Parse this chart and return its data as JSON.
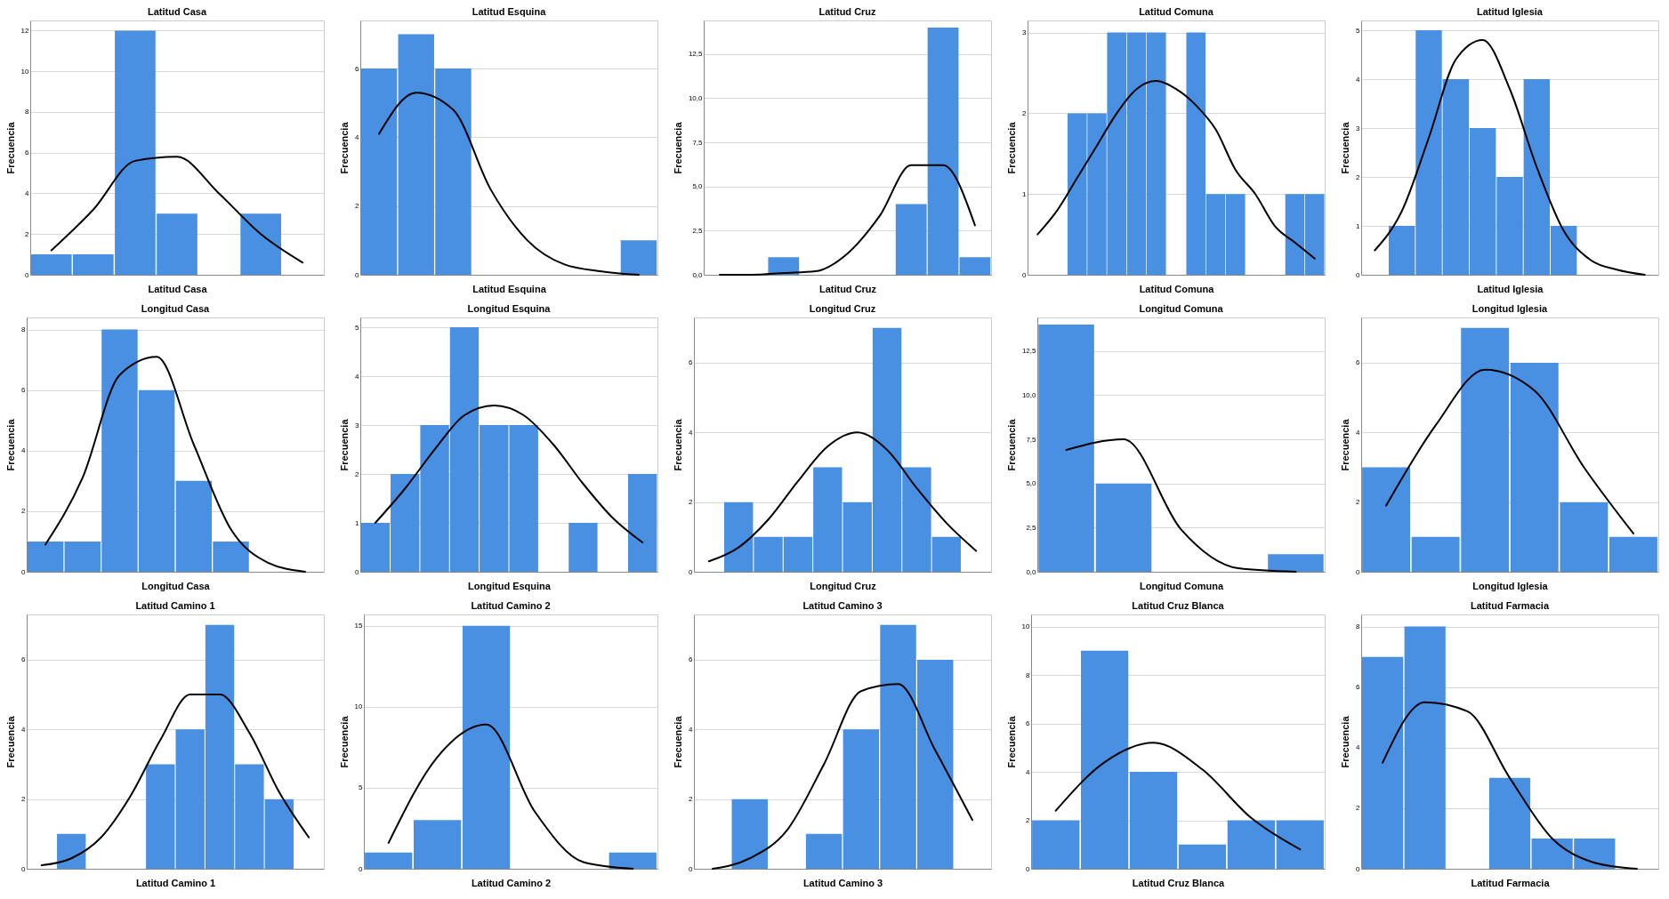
{
  "chart_data": [
    {
      "type": "bar",
      "title": "Latitud Casa",
      "xlabel": "Latitud Casa",
      "ylabel": "Frecuencia",
      "categories": [
        null,
        null,
        null,
        null,
        null,
        null,
        null
      ],
      "series": [
        {
          "type": "bar",
          "color": "#4a90e2",
          "values": [
            1,
            1,
            12,
            3,
            0,
            3,
            null
          ]
        },
        {
          "type": "line",
          "color": "#000000",
          "values": [
            1.2,
            3.2,
            5.6,
            5.8,
            4.0,
            2.0,
            0.6
          ]
        }
      ],
      "ylim": [
        0,
        12.5
      ],
      "yticks": [
        0,
        2,
        4,
        6,
        8,
        10,
        12
      ],
      "grid": "y",
      "tick_labels": "y"
    },
    {
      "type": "bar",
      "title": "Latitud Esquina",
      "xlabel": "Latitud Esquina",
      "ylabel": "Frecuencia",
      "categories": [
        null,
        null,
        null,
        null,
        null,
        null,
        null,
        null
      ],
      "series": [
        {
          "type": "bar",
          "color": "#4a90e2",
          "values": [
            6,
            7,
            6,
            0,
            0,
            0,
            0,
            1
          ]
        },
        {
          "type": "line",
          "color": "#000000",
          "values": [
            4.1,
            5.3,
            4.8,
            2.5,
            1.0,
            0.3,
            0.1,
            0
          ]
        }
      ],
      "ylim": [
        0,
        7.4
      ],
      "yticks": [
        0,
        2,
        4,
        6
      ],
      "grid": "y",
      "tick_labels": "y"
    },
    {
      "type": "bar",
      "title": "Latitud Cruz",
      "xlabel": "Latitud Cruz",
      "ylabel": "Frecuencia",
      "categories": [
        null,
        null,
        null,
        null,
        null,
        null,
        null,
        null,
        null
      ],
      "series": [
        {
          "type": "bar",
          "color": "#4a90e2",
          "values": [
            0,
            0,
            1,
            0,
            0,
            0,
            4,
            14,
            1
          ]
        },
        {
          "type": "line",
          "color": "#000000",
          "values": [
            0,
            0,
            0.1,
            0.2,
            1.2,
            3.3,
            6.2,
            6.2,
            2.8
          ]
        }
      ],
      "ylim": [
        0,
        14.4
      ],
      "yticks": [
        {
          "value": 0,
          "label": "0,0"
        },
        {
          "value": 2.5,
          "label": "2,5"
        },
        {
          "value": 5,
          "label": "5,0"
        },
        {
          "value": 7.5,
          "label": "7,5"
        },
        {
          "value": 10,
          "label": "10,0"
        },
        {
          "value": 12.5,
          "label": "12,5"
        }
      ],
      "grid": "y",
      "tick_labels": "y"
    },
    {
      "type": "bar",
      "title": "Latitud Comuna",
      "xlabel": "Latitud Comuna",
      "ylabel": "Frecuencia",
      "categories": [
        null,
        null,
        null,
        null,
        null,
        null,
        null,
        null,
        null,
        null,
        null,
        null,
        null,
        null,
        null
      ],
      "series": [
        {
          "type": "bar",
          "color": "#4a90e2",
          "values": [
            null,
            null,
            2,
            2,
            3,
            3,
            3,
            0,
            3,
            1,
            1,
            0,
            0,
            1,
            1
          ]
        },
        {
          "type": "line",
          "color": "#000000",
          "values": [
            0.5,
            0.8,
            1.2,
            1.6,
            2.0,
            2.3,
            2.4,
            2.3,
            2.1,
            1.8,
            1.3,
            1.0,
            0.6,
            0.4,
            0.2
          ]
        }
      ],
      "ylim": [
        0,
        3.15
      ],
      "yticks": [
        0,
        1,
        2,
        3
      ],
      "grid": "y",
      "tick_labels": "y"
    },
    {
      "type": "bar",
      "title": "Latitud Iglesia",
      "xlabel": "Latitud Iglesia",
      "ylabel": "Frecuencia",
      "categories": [
        null,
        null,
        null,
        null,
        null,
        null,
        null,
        null,
        null,
        null,
        null
      ],
      "series": [
        {
          "type": "bar",
          "color": "#4a90e2",
          "values": [
            null,
            1,
            5,
            4,
            3,
            2,
            4,
            1,
            null,
            null,
            null
          ]
        },
        {
          "type": "line",
          "color": "#000000",
          "values": [
            0.5,
            1.3,
            2.8,
            4.4,
            4.8,
            3.8,
            2.2,
            0.9,
            0.3,
            0.1,
            0
          ]
        }
      ],
      "ylim": [
        0,
        5.2
      ],
      "yticks": [
        0,
        1,
        2,
        3,
        4,
        5
      ],
      "grid": "y",
      "tick_labels": "y"
    },
    {
      "type": "bar",
      "title": "Longitud Casa",
      "xlabel": "Longitud Casa",
      "ylabel": "Frecuencia",
      "categories": [
        null,
        null,
        null,
        null,
        null,
        null,
        null,
        null
      ],
      "series": [
        {
          "type": "bar",
          "color": "#4a90e2",
          "values": [
            1,
            1,
            8,
            6,
            3,
            1,
            null,
            null
          ]
        },
        {
          "type": "line",
          "color": "#000000",
          "values": [
            0.9,
            3.1,
            6.5,
            7.1,
            4.2,
            1.4,
            0.3,
            0
          ]
        }
      ],
      "ylim": [
        0,
        8.4
      ],
      "yticks": [
        0,
        2,
        4,
        6,
        8
      ],
      "grid": "y",
      "tick_labels": "y"
    },
    {
      "type": "bar",
      "title": "Longitud Esquina",
      "xlabel": "Longitud Esquina",
      "ylabel": "Frecuencia",
      "categories": [
        null,
        null,
        null,
        null,
        null,
        null,
        null,
        null,
        null,
        null
      ],
      "series": [
        {
          "type": "bar",
          "color": "#4a90e2",
          "values": [
            1,
            2,
            3,
            5,
            3,
            3,
            0,
            1,
            0,
            2
          ]
        },
        {
          "type": "line",
          "color": "#000000",
          "values": [
            1.0,
            1.7,
            2.5,
            3.2,
            3.4,
            3.2,
            2.6,
            1.8,
            1.1,
            0.6
          ]
        }
      ],
      "ylim": [
        0,
        5.2
      ],
      "yticks": [
        0,
        1,
        2,
        3,
        4,
        5
      ],
      "grid": "y",
      "tick_labels": "y"
    },
    {
      "type": "bar",
      "title": "Longitud Cruz",
      "xlabel": "Longitud Cruz",
      "ylabel": "Frecuencia",
      "categories": [
        null,
        null,
        null,
        null,
        null,
        null,
        null,
        null,
        null,
        null
      ],
      "series": [
        {
          "type": "bar",
          "color": "#4a90e2",
          "values": [
            null,
            2,
            1,
            1,
            3,
            2,
            7,
            3,
            1,
            null
          ]
        },
        {
          "type": "line",
          "color": "#000000",
          "values": [
            0.3,
            0.7,
            1.5,
            2.6,
            3.6,
            4.0,
            3.5,
            2.4,
            1.4,
            0.6
          ]
        }
      ],
      "ylim": [
        0,
        7.3
      ],
      "yticks": [
        0,
        2,
        4,
        6
      ],
      "grid": "y",
      "tick_labels": "y"
    },
    {
      "type": "bar",
      "title": "Longitud Comuna",
      "xlabel": "Longitud Comuna",
      "ylabel": "Frecuencia",
      "categories": [
        null,
        null,
        null,
        null,
        null
      ],
      "series": [
        {
          "type": "bar",
          "color": "#4a90e2",
          "values": [
            14,
            5,
            0,
            0,
            1
          ]
        },
        {
          "type": "line",
          "color": "#000000",
          "values": [
            6.9,
            7.5,
            2.4,
            0.2,
            0
          ]
        }
      ],
      "ylim": [
        0,
        14.4
      ],
      "yticks": [
        {
          "value": 0,
          "label": "0,0"
        },
        {
          "value": 2.5,
          "label": "2,5"
        },
        {
          "value": 5,
          "label": "5,0"
        },
        {
          "value": 7.5,
          "label": "7,5"
        },
        {
          "value": 10,
          "label": "10,0"
        },
        {
          "value": 12.5,
          "label": "12,5"
        }
      ],
      "grid": "y",
      "tick_labels": "y"
    },
    {
      "type": "bar",
      "title": "Longitud Iglesia",
      "xlabel": "Longitud Iglesia",
      "ylabel": "Frecuencia",
      "categories": [
        null,
        null,
        null,
        null,
        null,
        null
      ],
      "series": [
        {
          "type": "bar",
          "color": "#4a90e2",
          "values": [
            3,
            1,
            7,
            6,
            2,
            1
          ]
        },
        {
          "type": "line",
          "color": "#000000",
          "values": [
            1.9,
            4.2,
            5.8,
            5.2,
            3.0,
            1.1
          ]
        }
      ],
      "ylim": [
        0,
        7.3
      ],
      "yticks": [
        0,
        2,
        4,
        6
      ],
      "grid": "y",
      "tick_labels": "y"
    },
    {
      "type": "bar",
      "title": "Latitud Camino 1",
      "xlabel": "Latitud Camino 1",
      "ylabel": "Frecuencia",
      "categories": [
        null,
        null,
        null,
        null,
        null,
        null,
        null,
        null,
        null,
        null
      ],
      "series": [
        {
          "type": "bar",
          "color": "#4a90e2",
          "values": [
            null,
            1,
            0,
            0,
            3,
            4,
            7,
            3,
            2,
            null
          ]
        },
        {
          "type": "line",
          "color": "#000000",
          "values": [
            0.1,
            0.3,
            0.9,
            2.1,
            3.7,
            5.0,
            5.0,
            3.9,
            2.2,
            0.9
          ]
        }
      ],
      "ylim": [
        0,
        7.3
      ],
      "yticks": [
        0,
        2,
        4,
        6
      ],
      "grid": "y",
      "tick_labels": "y"
    },
    {
      "type": "bar",
      "title": "Latitud Camino 2",
      "xlabel": "Latitud Camino 2",
      "ylabel": "Frecuencia",
      "categories": [
        null,
        null,
        null,
        null,
        null,
        null
      ],
      "series": [
        {
          "type": "bar",
          "color": "#4a90e2",
          "values": [
            1,
            3,
            15,
            0,
            0,
            1
          ]
        },
        {
          "type": "line",
          "color": "#000000",
          "values": [
            1.6,
            6.9,
            8.9,
            3.5,
            0.4,
            0
          ]
        }
      ],
      "ylim": [
        0,
        15.7
      ],
      "yticks": [
        0,
        5,
        10,
        15
      ],
      "grid": "y",
      "tick_labels": "y"
    },
    {
      "type": "bar",
      "title": "Latitud Camino 3",
      "xlabel": "Latitud Camino 3",
      "ylabel": "Frecuencia",
      "categories": [
        null,
        null,
        null,
        null,
        null,
        null,
        null,
        null
      ],
      "series": [
        {
          "type": "bar",
          "color": "#4a90e2",
          "values": [
            null,
            2,
            0,
            1,
            4,
            7,
            6,
            null
          ]
        },
        {
          "type": "line",
          "color": "#000000",
          "values": [
            0,
            0.3,
            1.1,
            3.0,
            5.1,
            5.3,
            3.4,
            1.4
          ]
        }
      ],
      "ylim": [
        0,
        7.3
      ],
      "yticks": [
        0,
        2,
        4,
        6
      ],
      "grid": "y",
      "tick_labels": "y"
    },
    {
      "type": "bar",
      "title": "Latitud Cruz Blanca",
      "xlabel": "Latitud Cruz Blanca",
      "ylabel": "Frecuencia",
      "categories": [
        null,
        null,
        null,
        null,
        null,
        null
      ],
      "series": [
        {
          "type": "bar",
          "color": "#4a90e2",
          "values": [
            2,
            9,
            4,
            1,
            2,
            2
          ]
        },
        {
          "type": "line",
          "color": "#000000",
          "values": [
            2.4,
            4.4,
            5.2,
            4.1,
            2.1,
            0.8
          ]
        }
      ],
      "ylim": [
        0,
        10.5
      ],
      "yticks": [
        0,
        2,
        4,
        6,
        8,
        10
      ],
      "grid": "y",
      "tick_labels": "y"
    },
    {
      "type": "bar",
      "title": "Latitud Farmacia",
      "xlabel": "Latitud Farmacia",
      "ylabel": "Frecuencia",
      "categories": [
        null,
        null,
        null,
        null,
        null,
        null,
        null
      ],
      "series": [
        {
          "type": "bar",
          "color": "#4a90e2",
          "values": [
            7,
            8,
            0,
            3,
            1,
            1,
            null
          ]
        },
        {
          "type": "line",
          "color": "#000000",
          "values": [
            3.5,
            5.5,
            5.2,
            3.0,
            1.0,
            0.2,
            0
          ]
        }
      ],
      "ylim": [
        0,
        8.4
      ],
      "yticks": [
        0,
        2,
        4,
        6,
        8
      ],
      "grid": "y",
      "tick_labels": "y"
    }
  ]
}
